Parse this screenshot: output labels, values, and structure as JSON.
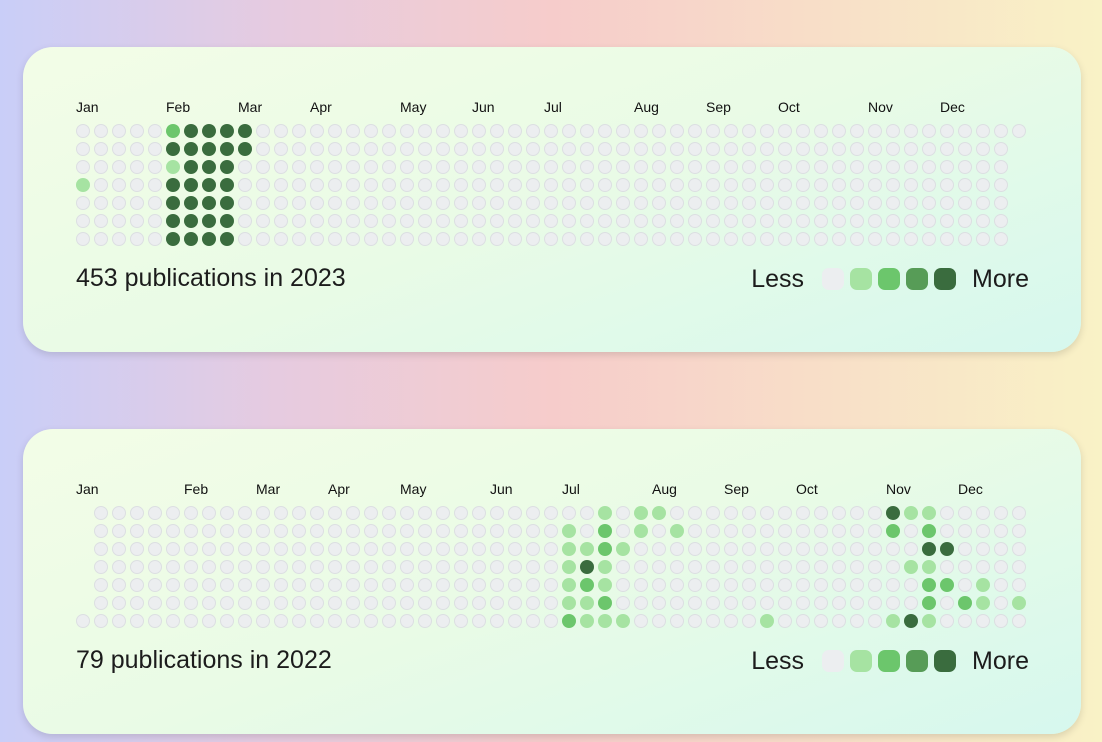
{
  "legend": {
    "less_label": "Less",
    "more_label": "More",
    "levels": [
      "#eceef0",
      "#a6e3a2",
      "#6cc66c",
      "#579c57",
      "#3a6c3e"
    ]
  },
  "chart_data": [
    {
      "type": "heatmap",
      "title": "453 publications in 2023",
      "total": 453,
      "year": 2023,
      "months": [
        "Jan",
        "Feb",
        "Mar",
        "Apr",
        "May",
        "Jun",
        "Jul",
        "Aug",
        "Sep",
        "Oct",
        "Nov",
        "Dec"
      ],
      "month_start_week": [
        0,
        5,
        9,
        13,
        18,
        22,
        26,
        31,
        35,
        39,
        44,
        48
      ],
      "weeks": 53,
      "first_week_start_row": 0,
      "last_week_end_row": 0,
      "active_cells": [
        [
          0,
          3,
          1
        ],
        [
          5,
          0,
          2
        ],
        [
          5,
          1,
          4
        ],
        [
          5,
          2,
          1
        ],
        [
          5,
          3,
          4
        ],
        [
          5,
          4,
          4
        ],
        [
          5,
          5,
          4
        ],
        [
          5,
          6,
          4
        ],
        [
          6,
          0,
          4
        ],
        [
          6,
          1,
          4
        ],
        [
          6,
          2,
          4
        ],
        [
          6,
          3,
          4
        ],
        [
          6,
          4,
          4
        ],
        [
          6,
          5,
          4
        ],
        [
          6,
          6,
          4
        ],
        [
          7,
          0,
          4
        ],
        [
          7,
          1,
          4
        ],
        [
          7,
          2,
          4
        ],
        [
          7,
          3,
          4
        ],
        [
          7,
          4,
          4
        ],
        [
          7,
          5,
          4
        ],
        [
          7,
          6,
          4
        ],
        [
          8,
          0,
          4
        ],
        [
          8,
          1,
          4
        ],
        [
          8,
          2,
          4
        ],
        [
          8,
          3,
          4
        ],
        [
          8,
          4,
          4
        ],
        [
          8,
          5,
          4
        ],
        [
          8,
          6,
          4
        ],
        [
          9,
          0,
          4
        ],
        [
          9,
          1,
          4
        ]
      ]
    },
    {
      "type": "heatmap",
      "title": "79 publications in 2022",
      "total": 79,
      "year": 2022,
      "months": [
        "Jan",
        "Feb",
        "Mar",
        "Apr",
        "May",
        "Jun",
        "Jul",
        "Aug",
        "Sep",
        "Oct",
        "Nov",
        "Dec"
      ],
      "month_start_week": [
        0,
        6,
        10,
        14,
        18,
        23,
        27,
        32,
        36,
        40,
        45,
        49
      ],
      "weeks": 53,
      "first_week_start_row": 6,
      "last_week_end_row": 6,
      "active_cells": [
        [
          27,
          1,
          1
        ],
        [
          27,
          2,
          1
        ],
        [
          27,
          3,
          1
        ],
        [
          27,
          4,
          1
        ],
        [
          27,
          5,
          1
        ],
        [
          27,
          6,
          2
        ],
        [
          28,
          2,
          1
        ],
        [
          28,
          3,
          4
        ],
        [
          28,
          4,
          2
        ],
        [
          28,
          5,
          1
        ],
        [
          28,
          6,
          1
        ],
        [
          29,
          0,
          1
        ],
        [
          29,
          1,
          2
        ],
        [
          29,
          2,
          2
        ],
        [
          29,
          3,
          1
        ],
        [
          29,
          4,
          1
        ],
        [
          29,
          5,
          2
        ],
        [
          29,
          6,
          1
        ],
        [
          30,
          2,
          1
        ],
        [
          30,
          6,
          1
        ],
        [
          31,
          0,
          1
        ],
        [
          31,
          1,
          1
        ],
        [
          32,
          0,
          1
        ],
        [
          33,
          1,
          1
        ],
        [
          38,
          6,
          1
        ],
        [
          45,
          0,
          4
        ],
        [
          45,
          1,
          2
        ],
        [
          45,
          6,
          1
        ],
        [
          46,
          0,
          1
        ],
        [
          46,
          3,
          1
        ],
        [
          46,
          6,
          4
        ],
        [
          47,
          0,
          1
        ],
        [
          47,
          1,
          2
        ],
        [
          47,
          2,
          4
        ],
        [
          47,
          3,
          1
        ],
        [
          47,
          4,
          2
        ],
        [
          47,
          5,
          2
        ],
        [
          47,
          6,
          1
        ],
        [
          48,
          2,
          4
        ],
        [
          48,
          4,
          2
        ],
        [
          49,
          5,
          2
        ],
        [
          50,
          4,
          1
        ],
        [
          50,
          5,
          1
        ],
        [
          52,
          5,
          1
        ]
      ]
    }
  ]
}
